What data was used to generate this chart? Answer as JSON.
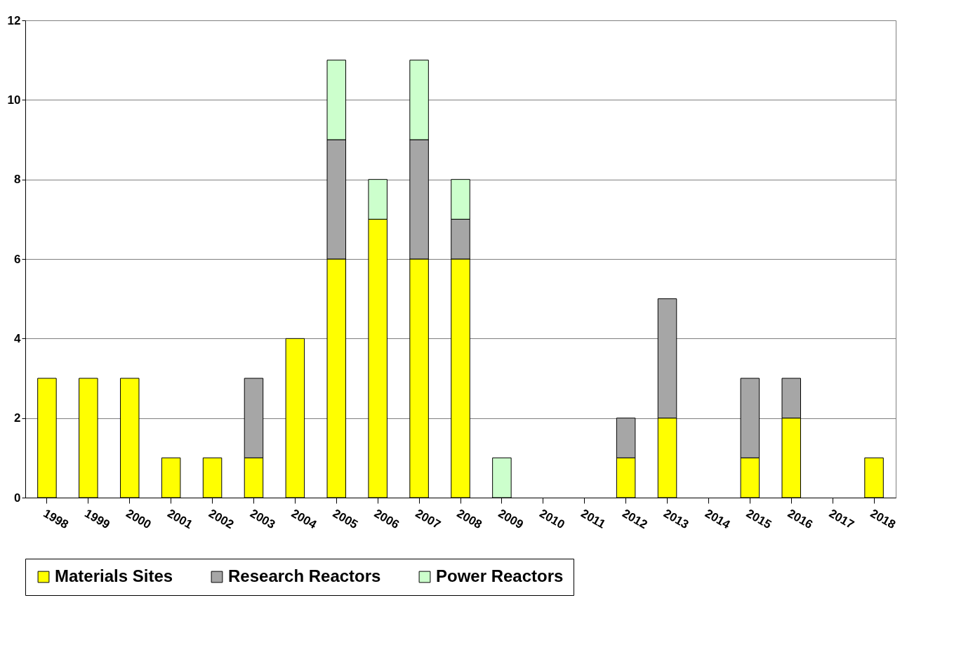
{
  "chart_data": {
    "type": "bar",
    "stacked": true,
    "categories": [
      "1998",
      "1999",
      "2000",
      "2001",
      "2002",
      "2003",
      "2004",
      "2005",
      "2006",
      "2007",
      "2008",
      "2009",
      "2010",
      "2011",
      "2012",
      "2013",
      "2014",
      "2015",
      "2016",
      "2017",
      "2018"
    ],
    "series": [
      {
        "name": "Materials Sites",
        "color": "#ffff00",
        "values": [
          3,
          3,
          3,
          1,
          1,
          1,
          4,
          6,
          7,
          6,
          6,
          0,
          0,
          0,
          1,
          2,
          0,
          1,
          2,
          0,
          1
        ]
      },
      {
        "name": "Research Reactors",
        "color": "#a6a6a6",
        "values": [
          0,
          0,
          0,
          0,
          0,
          2,
          0,
          3,
          0,
          3,
          1,
          0,
          0,
          0,
          1,
          3,
          0,
          2,
          1,
          0,
          0
        ]
      },
      {
        "name": "Power Reactors",
        "color": "#ccffcc",
        "values": [
          0,
          0,
          0,
          0,
          0,
          0,
          0,
          2,
          1,
          2,
          1,
          1,
          0,
          0,
          0,
          0,
          0,
          0,
          0,
          0,
          0
        ]
      }
    ],
    "ylim": [
      0,
      12
    ],
    "yticks": [
      0,
      2,
      4,
      6,
      8,
      10,
      12
    ],
    "grid": "y",
    "legend": "bottom"
  }
}
